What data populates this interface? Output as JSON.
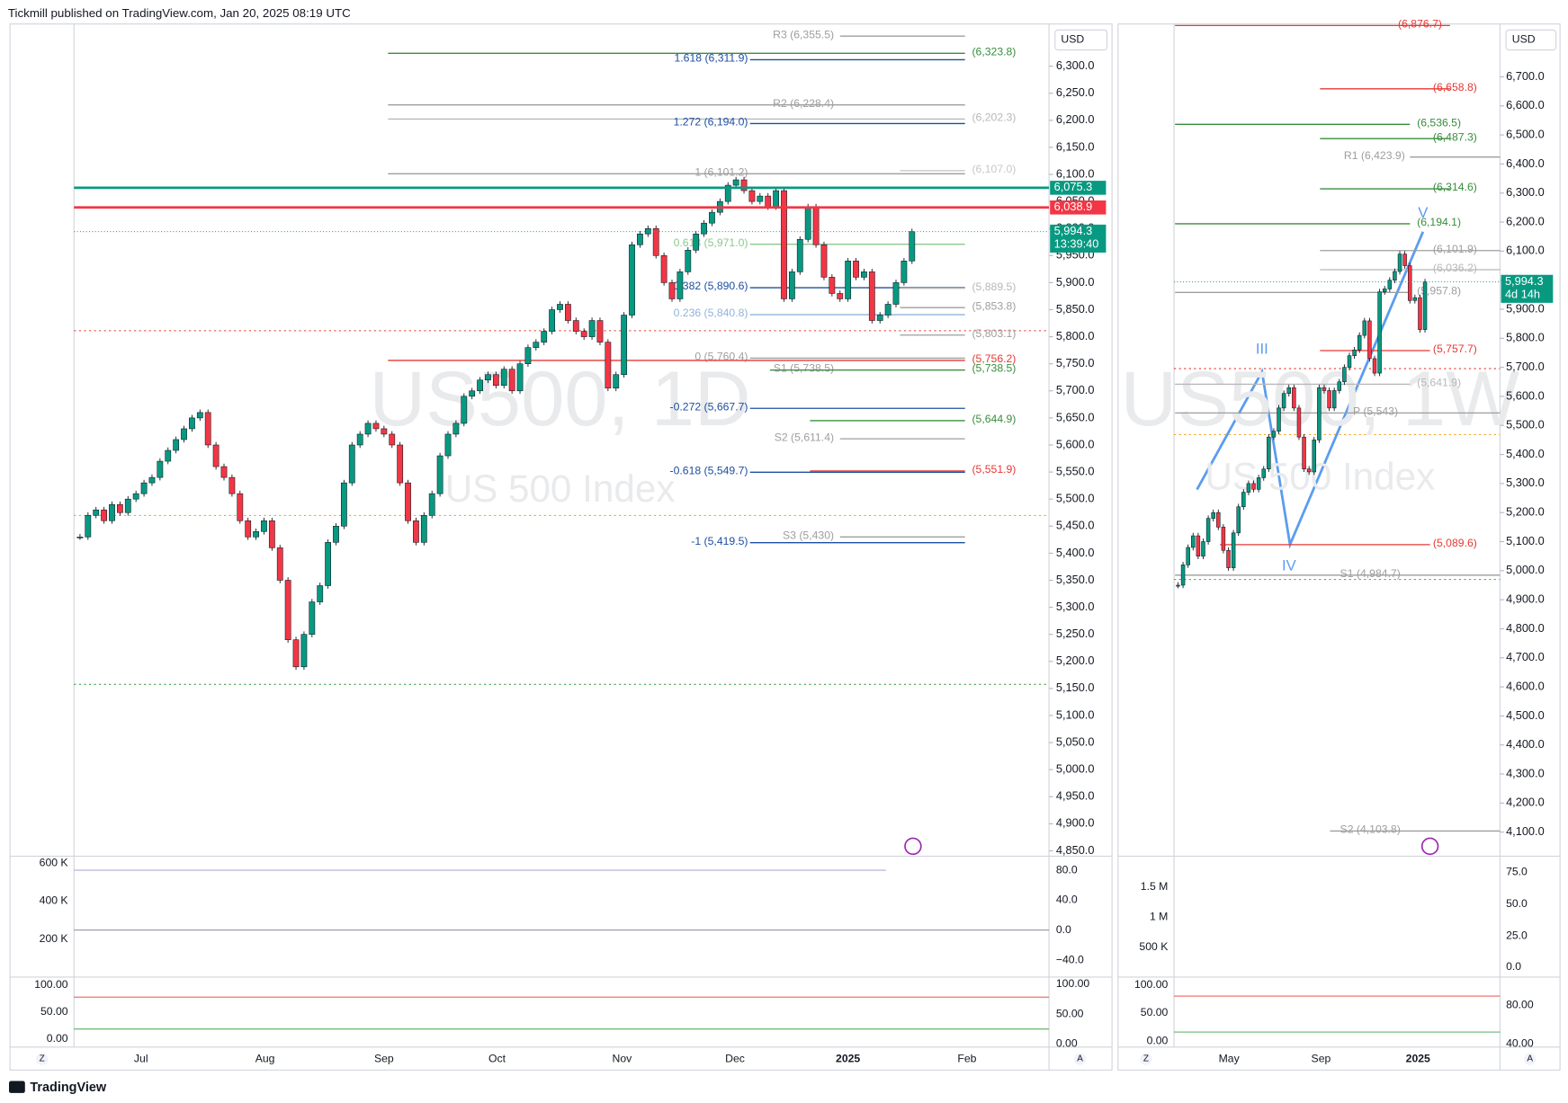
{
  "header": {
    "publisher": "Tickmill published on TradingView.com, Jan 20, 2025 08:19 UTC"
  },
  "footer": {
    "brand": "TradingView"
  },
  "left_chart": {
    "type": "candlestick",
    "symbol": "US500, 1D",
    "description": "US 500 Index",
    "currency": "USD",
    "ylim": [
      4840,
      6378
    ],
    "yticks": [
      {
        "value": 6300,
        "label": "6,300.0"
      },
      {
        "value": 6250,
        "label": "6,250.0"
      },
      {
        "value": 6200,
        "label": "6,200.0"
      },
      {
        "value": 6150,
        "label": "6,150.0"
      },
      {
        "value": 6100,
        "label": "6,100.0"
      },
      {
        "value": 6050,
        "label": "6,050.0"
      },
      {
        "value": 6000,
        "label": "6,000.0"
      },
      {
        "value": 5950,
        "label": "5,950.0"
      },
      {
        "value": 5900,
        "label": "5,900.0"
      },
      {
        "value": 5850,
        "label": "5,850.0"
      },
      {
        "value": 5800,
        "label": "5,800.0"
      },
      {
        "value": 5750,
        "label": "5,750.0"
      },
      {
        "value": 5700,
        "label": "5,700.0"
      },
      {
        "value": 5650,
        "label": "5,650.0"
      },
      {
        "value": 5600,
        "label": "5,600.0"
      },
      {
        "value": 5550,
        "label": "5,550.0"
      },
      {
        "value": 5500,
        "label": "5,500.0"
      },
      {
        "value": 5450,
        "label": "5,450.0"
      },
      {
        "value": 5400,
        "label": "5,400.0"
      },
      {
        "value": 5350,
        "label": "5,350.0"
      },
      {
        "value": 5300,
        "label": "5,300.0"
      },
      {
        "value": 5250,
        "label": "5,250.0"
      },
      {
        "value": 5200,
        "label": "5,200.0"
      },
      {
        "value": 5150,
        "label": "5,150.0"
      },
      {
        "value": 5100,
        "label": "5,100.0"
      },
      {
        "value": 5050,
        "label": "5,050.0"
      },
      {
        "value": 5000,
        "label": "5,000.0"
      },
      {
        "value": 4950,
        "label": "4,950.0"
      },
      {
        "value": 4900,
        "label": "4,900.0"
      },
      {
        "value": 4850,
        "label": "4,850.0"
      }
    ],
    "x_labels": [
      "Jul",
      "Aug",
      "Sep",
      "Oct",
      "Nov",
      "Dec",
      "2025",
      "Feb"
    ],
    "closes": [
      5430,
      5470,
      5480,
      5460,
      5490,
      5475,
      5500,
      5510,
      5530,
      5540,
      5570,
      5590,
      5610,
      5630,
      5650,
      5660,
      5600,
      5560,
      5540,
      5510,
      5460,
      5430,
      5440,
      5460,
      5410,
      5350,
      5240,
      5190,
      5250,
      5310,
      5340,
      5420,
      5450,
      5530,
      5600,
      5620,
      5640,
      5630,
      5620,
      5600,
      5530,
      5460,
      5420,
      5470,
      5510,
      5580,
      5620,
      5640,
      5690,
      5700,
      5720,
      5730,
      5710,
      5740,
      5700,
      5750,
      5780,
      5790,
      5810,
      5850,
      5860,
      5830,
      5810,
      5800,
      5830,
      5790,
      5705,
      5730,
      5840,
      5970,
      5990,
      6000,
      5950,
      5900,
      5870,
      5920,
      5960,
      5990,
      6010,
      6030,
      6050,
      6080,
      6090,
      6070,
      6050,
      6060,
      6040,
      6070,
      5870,
      5920,
      5980,
      6040,
      5970,
      5910,
      5880,
      5870,
      5940,
      5910,
      5920,
      5830,
      5840,
      5860,
      5900,
      5940,
      5994.3
    ],
    "levels": [
      {
        "label": "R3 (6,355.5)",
        "value": 6355.5,
        "color": "#9e9e9e"
      },
      {
        "label": "(6,323.8)",
        "value": 6323.8,
        "color": "#388e3c"
      },
      {
        "label": "1.618 (6,311.9)",
        "value": 6311.9,
        "color": "#1e4fa0"
      },
      {
        "label": "R2 (6,228.4)",
        "value": 6228.4,
        "color": "#9e9e9e"
      },
      {
        "label": "(6,202.3)",
        "value": 6202.3,
        "color": "#b8b8b8"
      },
      {
        "label": "1.272 (6,194.0)",
        "value": 6194.0,
        "color": "#1e4fa0"
      },
      {
        "label": "1 (6,101.2)",
        "value": 6101.2,
        "color": "#9e9e9e"
      },
      {
        "label": "(6,107.0)",
        "value": 6107.0,
        "color": "#c8c8c8"
      },
      {
        "label": "0.618 (5,971.0)",
        "value": 5971.0,
        "color": "#8bc98e"
      },
      {
        "label": "0.382 (5,890.6)",
        "value": 5890.6,
        "color": "#1e4fa0"
      },
      {
        "label": "(5,889.5)",
        "value": 5889.5,
        "color": "#b8b8b8"
      },
      {
        "label": "(5,853.8)",
        "value": 5853.8,
        "color": "#9e9e9e"
      },
      {
        "label": "0.236 (5,840.8)",
        "value": 5840.8,
        "color": "#90b4dc"
      },
      {
        "label": "(5,803.1)",
        "value": 5803.1,
        "color": "#9e9e9e"
      },
      {
        "label": "0 (5,760.4)",
        "value": 5760.4,
        "color": "#9e9e9e"
      },
      {
        "label": "(5,756.2)",
        "value": 5756.2,
        "color": "#e53935"
      },
      {
        "label": "S1 (5,738.5)",
        "value": 5738.5,
        "color": "#9e9e9e"
      },
      {
        "label": "(5,738.5)",
        "value": 5738.5,
        "color": "#388e3c"
      },
      {
        "label": "-0.272 (5,667.7)",
        "value": 5667.7,
        "color": "#1e4fa0"
      },
      {
        "label": "(5,644.9)",
        "value": 5644.9,
        "color": "#388e3c"
      },
      {
        "label": "S2 (5,611.4)",
        "value": 5611.4,
        "color": "#9e9e9e"
      },
      {
        "label": "-0.618 (5,549.7)",
        "value": 5549.7,
        "color": "#1e4fa0"
      },
      {
        "label": "(5,551.9)",
        "value": 5551.9,
        "color": "#e53935"
      },
      {
        "label": "S3 (5,430)",
        "value": 5430,
        "color": "#9e9e9e"
      },
      {
        "label": "-1 (5,419.5)",
        "value": 5419.5,
        "color": "#1e4fa0"
      }
    ],
    "price_tags": [
      {
        "value": 6075.3,
        "label": "6,075.3",
        "color": "#089981"
      },
      {
        "value": 6038.9,
        "label": "6,038.9",
        "color": "#f23645"
      },
      {
        "value": 5994.3,
        "label": "5,994.3",
        "sub": "13:39:40",
        "color": "#089981"
      }
    ],
    "volume_pane": {
      "left": [
        "600 K",
        "400 K",
        "200 K"
      ],
      "right": [
        "80.0",
        "40.0",
        "0.0",
        "−40.0"
      ]
    },
    "stoch_pane": {
      "left": [
        "100.00",
        "50.00",
        "0.00"
      ],
      "right": [
        "100.00",
        "50.00",
        "0.00"
      ]
    }
  },
  "right_chart": {
    "type": "candlestick",
    "symbol": "US500, 1W",
    "description": "US 500 Index",
    "currency": "USD",
    "ylim": [
      4017,
      6882
    ],
    "yticks": [
      {
        "value": 6700,
        "label": "6,700.0"
      },
      {
        "value": 6600,
        "label": "6,600.0"
      },
      {
        "value": 6500,
        "label": "6,500.0"
      },
      {
        "value": 6400,
        "label": "6,400.0"
      },
      {
        "value": 6300,
        "label": "6,300.0"
      },
      {
        "value": 6200,
        "label": "6,200.0"
      },
      {
        "value": 6100,
        "label": "6,100.0"
      },
      {
        "value": 6000,
        "label": "6,000.0"
      },
      {
        "value": 5900,
        "label": "5,900.0"
      },
      {
        "value": 5800,
        "label": "5,800.0"
      },
      {
        "value": 5700,
        "label": "5,700.0"
      },
      {
        "value": 5600,
        "label": "5,600.0"
      },
      {
        "value": 5500,
        "label": "5,500.0"
      },
      {
        "value": 5400,
        "label": "5,400.0"
      },
      {
        "value": 5300,
        "label": "5,300.0"
      },
      {
        "value": 5200,
        "label": "5,200.0"
      },
      {
        "value": 5100,
        "label": "5,100.0"
      },
      {
        "value": 5000,
        "label": "5,000.0"
      },
      {
        "value": 4900,
        "label": "4,900.0"
      },
      {
        "value": 4800,
        "label": "4,800.0"
      },
      {
        "value": 4700,
        "label": "4,700.0"
      },
      {
        "value": 4600,
        "label": "4,600.0"
      },
      {
        "value": 4500,
        "label": "4,500.0"
      },
      {
        "value": 4400,
        "label": "4,400.0"
      },
      {
        "value": 4300,
        "label": "4,300.0"
      },
      {
        "value": 4200,
        "label": "4,200.0"
      },
      {
        "value": 4100,
        "label": "4,100.0"
      }
    ],
    "x_labels": [
      "May",
      "Sep",
      "2025"
    ],
    "closes": [
      4950,
      5020,
      5080,
      5120,
      5050,
      5100,
      5180,
      5200,
      5150,
      5070,
      5010,
      5130,
      5220,
      5270,
      5300,
      5280,
      5320,
      5350,
      5460,
      5480,
      5560,
      5610,
      5630,
      5560,
      5460,
      5350,
      5340,
      5450,
      5630,
      5620,
      5560,
      5620,
      5650,
      5700,
      5740,
      5760,
      5810,
      5860,
      5730,
      5680,
      5960,
      5970,
      6000,
      6030,
      6090,
      6050,
      5930,
      5940,
      5830,
      5994.3
    ],
    "levels": [
      {
        "label": "(6,876.7)",
        "value": 6876.7,
        "color": "#e53935"
      },
      {
        "label": "(6,658.8)",
        "value": 6658.8,
        "color": "#e53935"
      },
      {
        "label": "(6,536.5)",
        "value": 6536.5,
        "color": "#388e3c"
      },
      {
        "label": "(6,487.3)",
        "value": 6487.3,
        "color": "#388e3c"
      },
      {
        "label": "R1 (6,423.9)",
        "value": 6423.9,
        "color": "#9e9e9e"
      },
      {
        "label": "(6,314.6)",
        "value": 6314.6,
        "color": "#388e3c"
      },
      {
        "label": "(6,194.1)",
        "value": 6194.1,
        "color": "#388e3c"
      },
      {
        "label": "(6,101.9)",
        "value": 6101.9,
        "color": "#9e9e9e"
      },
      {
        "label": "(6,036.2)",
        "value": 6036.2,
        "color": "#b8b8b8"
      },
      {
        "label": "(5,957.8)",
        "value": 5957.8,
        "color": "#9e9e9e"
      },
      {
        "label": "(5,757.7)",
        "value": 5757.7,
        "color": "#e53935"
      },
      {
        "label": "(5,641.9)",
        "value": 5641.9,
        "color": "#b8b8b8"
      },
      {
        "label": "P (5,543)",
        "value": 5543,
        "color": "#9e9e9e"
      },
      {
        "label": "(5,089.6)",
        "value": 5089.6,
        "color": "#e53935"
      },
      {
        "label": "S1 (4,984.7)",
        "value": 4984.7,
        "color": "#9e9e9e"
      },
      {
        "label": "S2 (4,103.8)",
        "value": 4103.8,
        "color": "#9e9e9e"
      }
    ],
    "waves": [
      "III",
      "IV",
      "V"
    ],
    "price_tags": [
      {
        "value": 5994.3,
        "label": "5,994.3",
        "sub": "4d 14h",
        "color": "#089981"
      }
    ],
    "volume_pane": {
      "left": [
        "1.5 M",
        "1 M",
        "500 K"
      ],
      "right": [
        "75.0",
        "50.0",
        "25.0",
        "0.0"
      ]
    },
    "stoch_pane": {
      "left": [
        "100.00",
        "50.00",
        "0.00"
      ],
      "right": [
        "80.00",
        "40.00"
      ]
    }
  }
}
